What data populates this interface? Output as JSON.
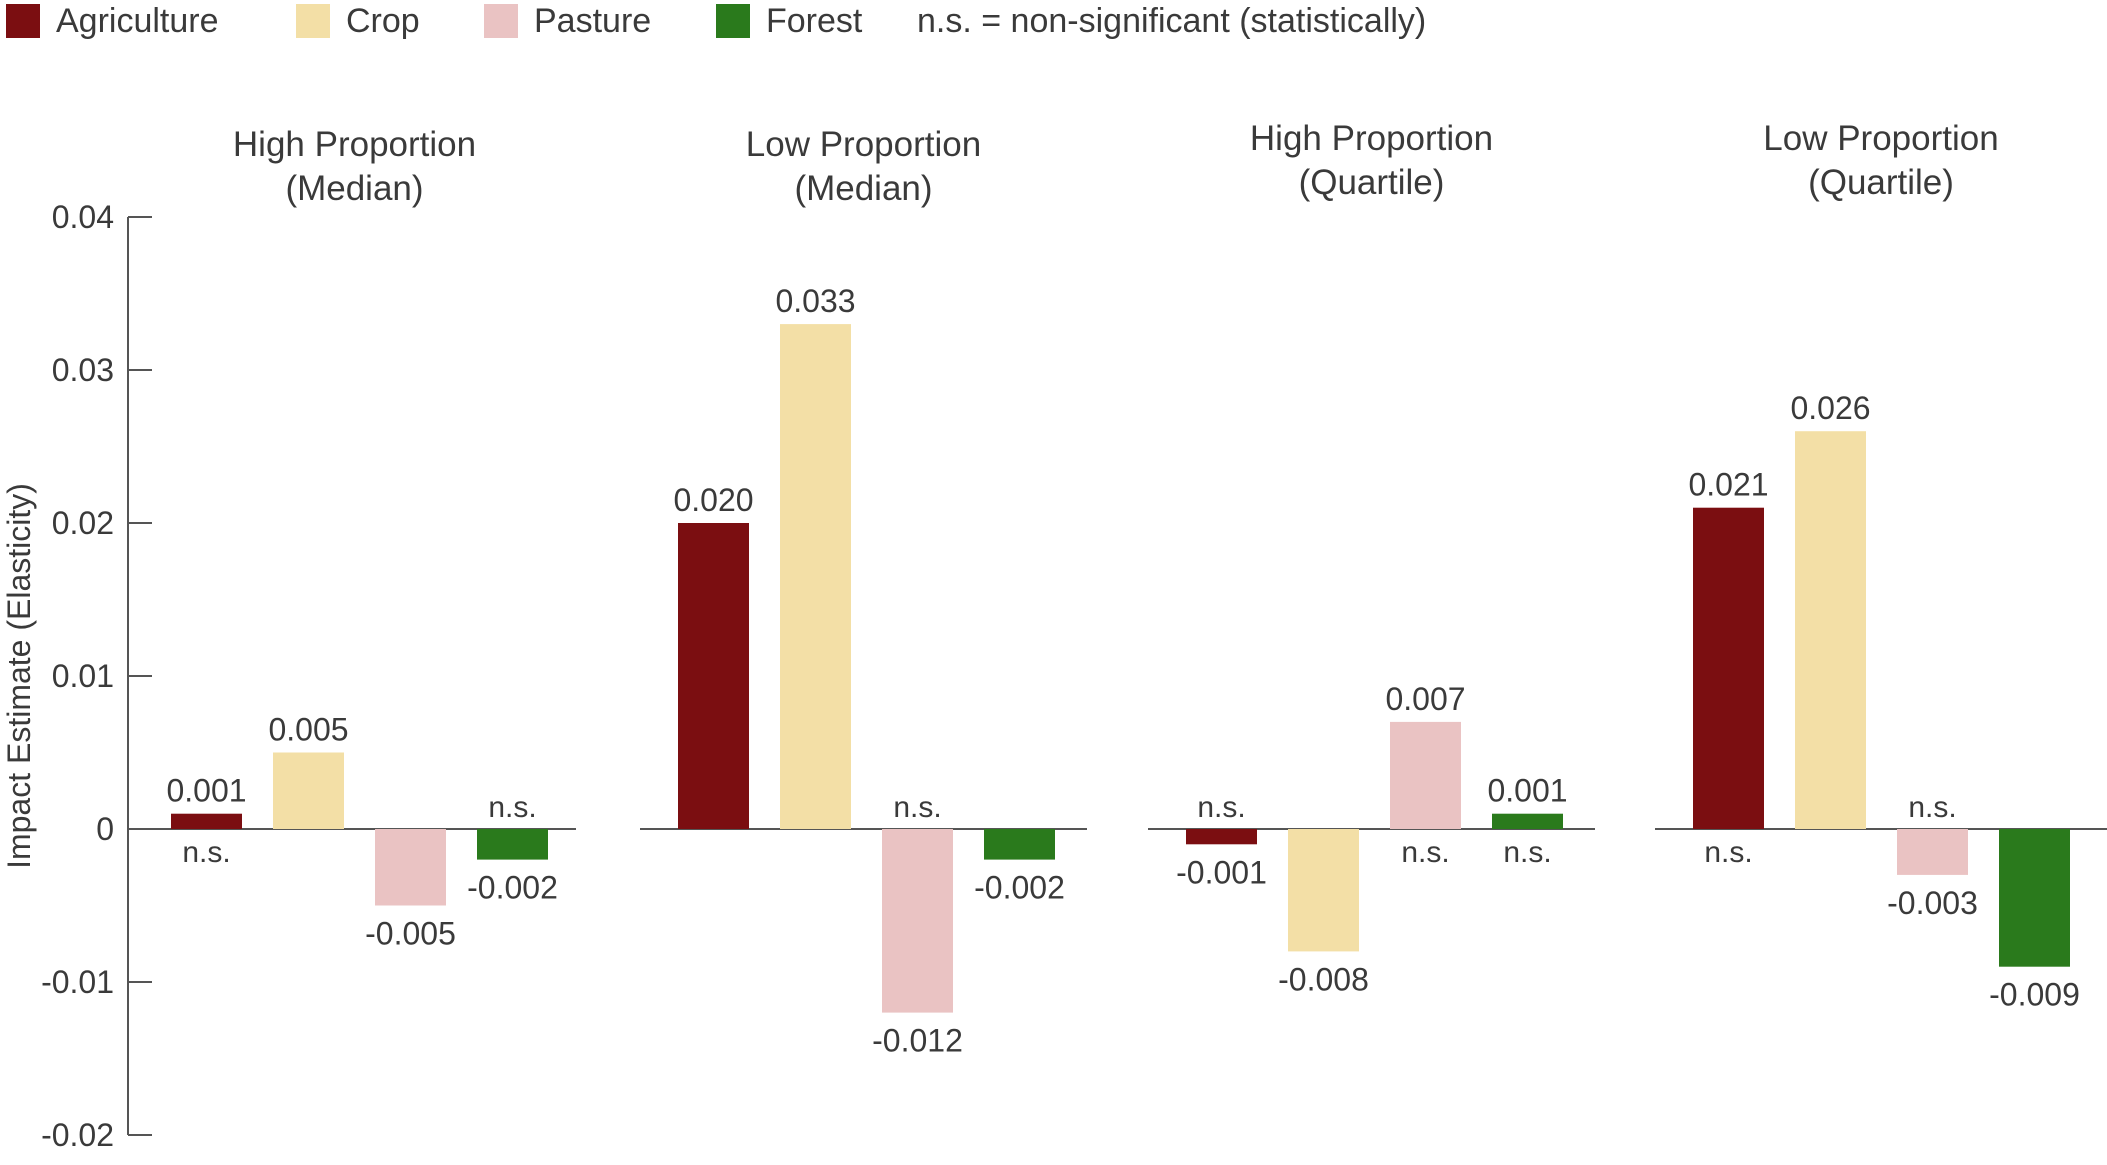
{
  "legend": {
    "items": [
      {
        "label": "Agriculture",
        "color": "#7B0E11"
      },
      {
        "label": "Crop",
        "color": "#F3DFA6"
      },
      {
        "label": "Pasture",
        "color": "#EAC3C3"
      },
      {
        "label": "Forest",
        "color": "#2A7A1C"
      }
    ],
    "note": "n.s. = non-significant (statistically)"
  },
  "chart_data": {
    "type": "bar",
    "ylabel": "Impact Estimate (Elasticity)",
    "ylim": [
      -0.02,
      0.04
    ],
    "yticks": [
      "0.04",
      "0.03",
      "0.02",
      "0.01",
      "0",
      "-0.01",
      "-0.02"
    ],
    "ytick_values": [
      0.04,
      0.03,
      0.02,
      0.01,
      0,
      -0.01,
      -0.02
    ],
    "categories": [
      "Agriculture",
      "Crop",
      "Pasture",
      "Forest"
    ],
    "panels": [
      {
        "title": [
          "High Proportion",
          "(Median)"
        ],
        "bars": [
          {
            "series": "Agriculture",
            "value": 0.001,
            "label": "0.001",
            "note": "n.s."
          },
          {
            "series": "Crop",
            "value": 0.005,
            "label": "0.005",
            "note": ""
          },
          {
            "series": "Pasture",
            "value": -0.005,
            "label": "-0.005",
            "note": ""
          },
          {
            "series": "Forest",
            "value": -0.002,
            "label": "-0.002",
            "note": "n.s."
          }
        ]
      },
      {
        "title": [
          "Low Proportion",
          "(Median)"
        ],
        "bars": [
          {
            "series": "Agriculture",
            "value": 0.02,
            "label": "0.020",
            "note": ""
          },
          {
            "series": "Crop",
            "value": 0.033,
            "label": "0.033",
            "note": ""
          },
          {
            "series": "Pasture",
            "value": -0.012,
            "label": "-0.012",
            "note": "n.s."
          },
          {
            "series": "Forest",
            "value": -0.002,
            "label": "-0.002",
            "note": ""
          }
        ]
      },
      {
        "title": [
          "High Proportion",
          "(Quartile)"
        ],
        "bars": [
          {
            "series": "Agriculture",
            "value": -0.001,
            "label": "-0.001",
            "note": "n.s."
          },
          {
            "series": "Crop",
            "value": -0.008,
            "label": "-0.008",
            "note": ""
          },
          {
            "series": "Pasture",
            "value": 0.007,
            "label": "0.007",
            "note": "n.s."
          },
          {
            "series": "Forest",
            "value": 0.001,
            "label": "0.001",
            "note": "n.s."
          }
        ]
      },
      {
        "title": [
          "Low Proportion",
          "(Quartile)"
        ],
        "bars": [
          {
            "series": "Agriculture",
            "value": 0.021,
            "label": "0.021",
            "note": "n.s."
          },
          {
            "series": "Crop",
            "value": 0.026,
            "label": "0.026",
            "note": ""
          },
          {
            "series": "Pasture",
            "value": -0.003,
            "label": "-0.003",
            "note": "n.s."
          },
          {
            "series": "Forest",
            "value": -0.009,
            "label": "-0.009",
            "note": ""
          }
        ]
      }
    ]
  }
}
